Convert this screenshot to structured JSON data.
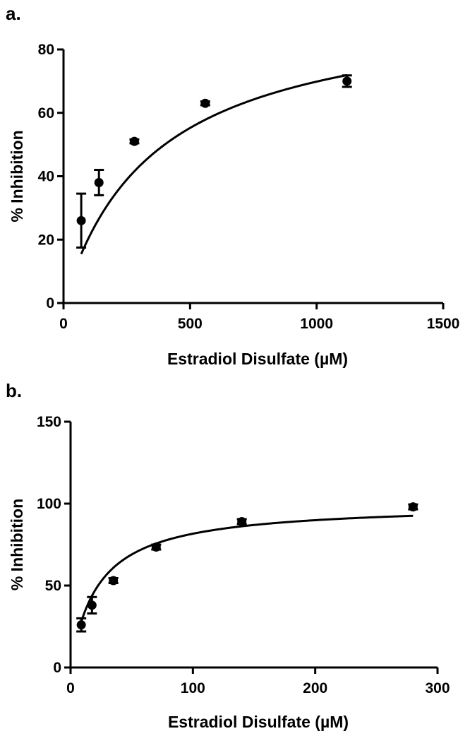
{
  "chart_data": [
    {
      "type": "scatter",
      "panel_label": "a.",
      "xlabel": "Estradiol  Disulfate  (µM)",
      "ylabel": "% Inhibition",
      "xlim": [
        0,
        1500
      ],
      "ylim": [
        0,
        80
      ],
      "xticks": [
        0,
        500,
        1000,
        1500
      ],
      "yticks": [
        0,
        20,
        40,
        60,
        80
      ],
      "grid": false,
      "points": [
        {
          "x": 70,
          "y": 26,
          "err": 8.5
        },
        {
          "x": 140,
          "y": 38,
          "err": 4
        },
        {
          "x": 280,
          "y": 51,
          "err": 0.6
        },
        {
          "x": 560,
          "y": 63,
          "err": 0.6
        },
        {
          "x": 1120,
          "y": 70,
          "err": 1.8
        }
      ],
      "fit": {
        "model": "hyperbolic",
        "top": 95,
        "half": 360,
        "x_start": 70,
        "x_end": 1120
      }
    },
    {
      "type": "scatter",
      "panel_label": "b.",
      "xlabel": "Estradiol Disulfate (µM)",
      "ylabel": "% Inhibition",
      "xlim": [
        0,
        300
      ],
      "ylim": [
        0,
        150
      ],
      "xticks": [
        0,
        100,
        200,
        300
      ],
      "yticks": [
        0,
        50,
        100,
        150
      ],
      "grid": false,
      "points": [
        {
          "x": 8.75,
          "y": 26,
          "err": 4
        },
        {
          "x": 17.5,
          "y": 38,
          "err": 5
        },
        {
          "x": 35,
          "y": 53,
          "err": 1.5
        },
        {
          "x": 70,
          "y": 73.5,
          "err": 1.5
        },
        {
          "x": 140,
          "y": 89,
          "err": 1.5
        },
        {
          "x": 280,
          "y": 98,
          "err": 1.5
        }
      ],
      "fit": {
        "model": "hyperbolic",
        "top": 100,
        "half": 22.5,
        "x_start": 8.75,
        "x_end": 280
      }
    }
  ]
}
